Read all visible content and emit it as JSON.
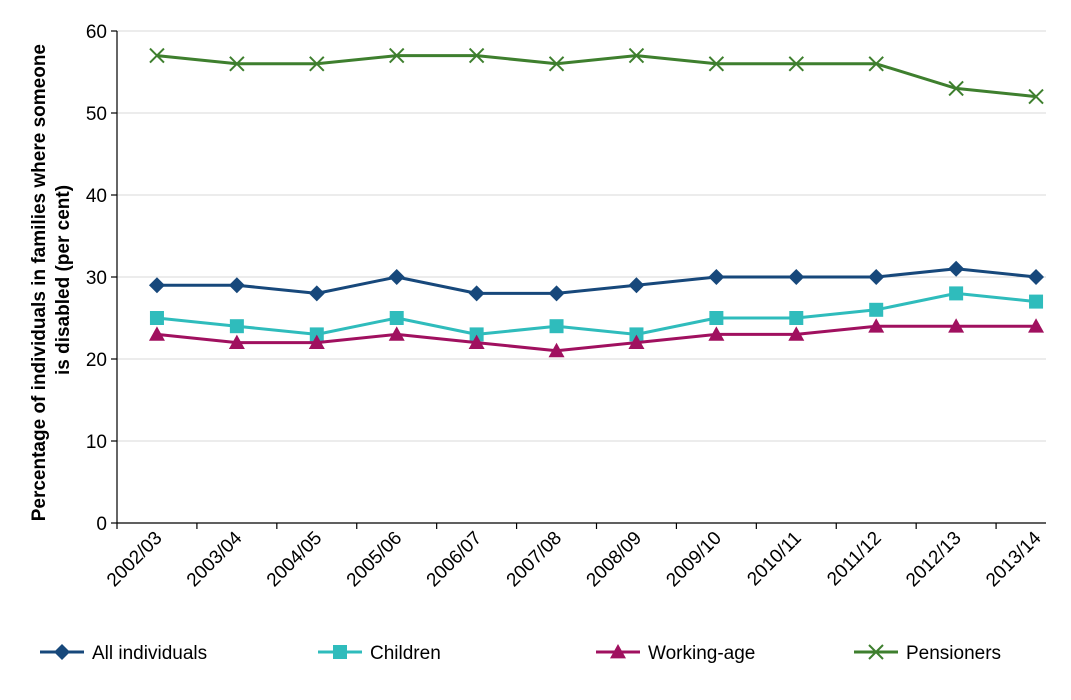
{
  "chart_data": {
    "type": "line",
    "title": "",
    "xlabel": "",
    "ylabel_lines": [
      "Percentage of individuals in families where someone",
      "is disabled (per cent)"
    ],
    "categories": [
      "2002/03",
      "2003/04",
      "2004/05",
      "2005/06",
      "2006/07",
      "2007/08",
      "2008/09",
      "2009/10",
      "2010/11",
      "2011/12",
      "2012/13",
      "2013/14"
    ],
    "ylim": [
      0,
      60
    ],
    "yticks": [
      0,
      10,
      20,
      30,
      40,
      50,
      60
    ],
    "grid": "horizontal",
    "legend_position": "bottom",
    "series": [
      {
        "name": "All individuals",
        "color": "#17487b",
        "marker": "diamond",
        "values": [
          29,
          29,
          28,
          30,
          28,
          28,
          29,
          30,
          30,
          30,
          31,
          30
        ]
      },
      {
        "name": "Children",
        "color": "#2fbcbc",
        "marker": "square",
        "values": [
          25,
          24,
          23,
          25,
          23,
          24,
          23,
          25,
          25,
          26,
          28,
          27
        ]
      },
      {
        "name": "Working-age",
        "color": "#a0105f",
        "marker": "triangle",
        "values": [
          23,
          22,
          22,
          23,
          22,
          21,
          22,
          23,
          23,
          24,
          24,
          24
        ]
      },
      {
        "name": "Pensioners",
        "color": "#3e7f2e",
        "marker": "x",
        "values": [
          57,
          56,
          56,
          57,
          57,
          56,
          57,
          56,
          56,
          56,
          53,
          52
        ]
      }
    ]
  }
}
